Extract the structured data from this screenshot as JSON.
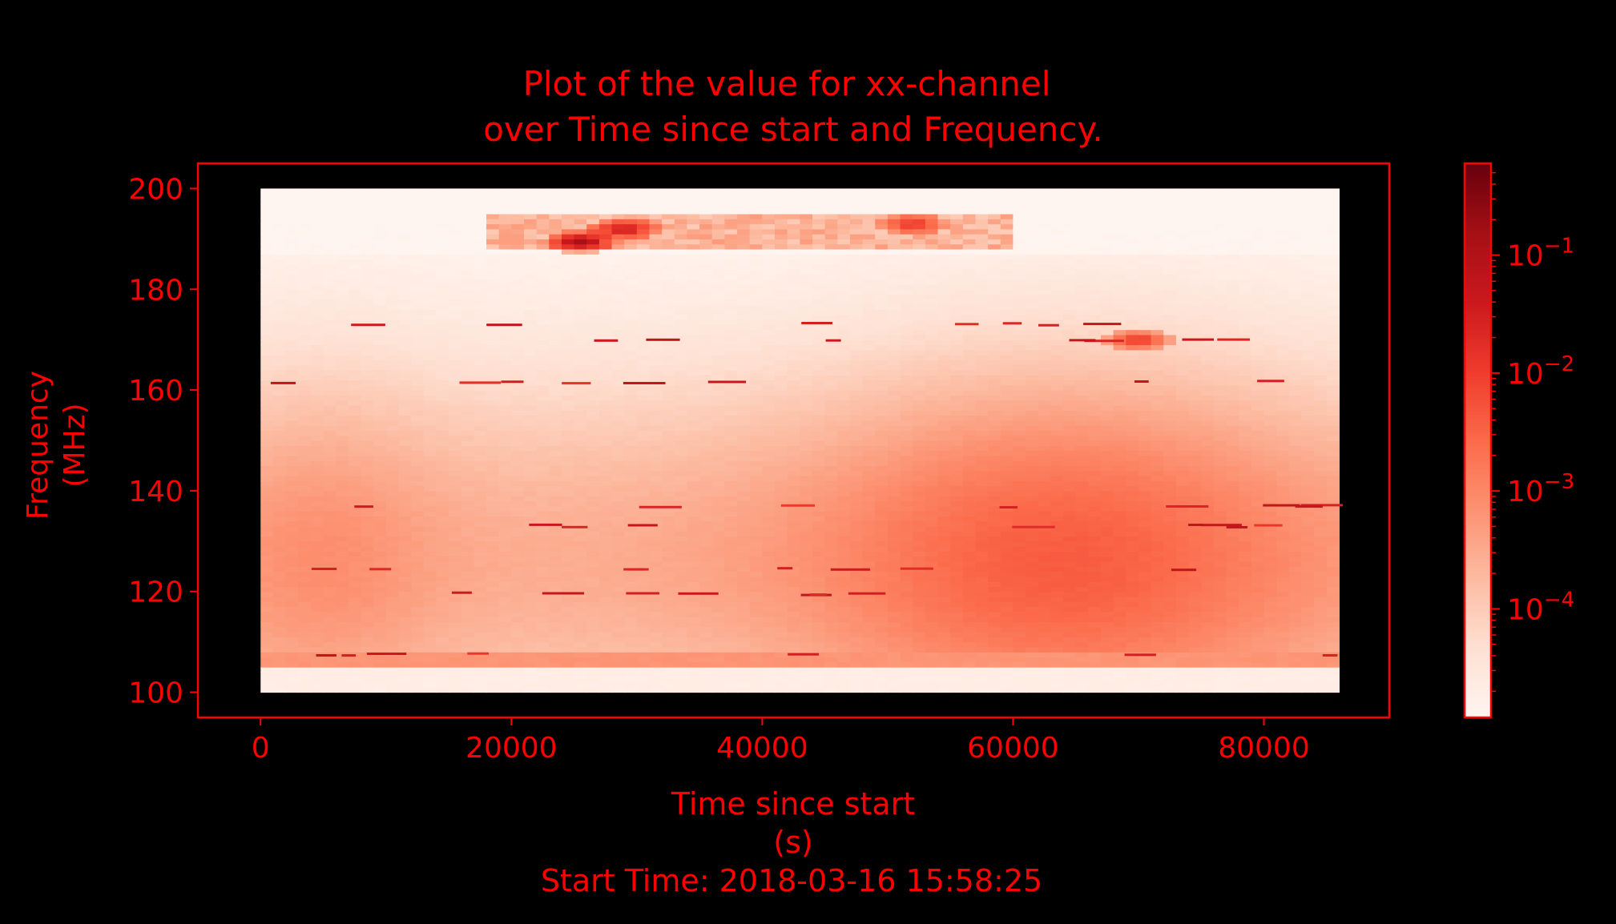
{
  "colors": {
    "background": "#000000",
    "accent": "#ff0000",
    "colormap": [
      "#fff5f0",
      "#fee0d2",
      "#fcbba1",
      "#fc9272",
      "#fb6a4a",
      "#ef3b2c",
      "#cb181d",
      "#a50f15",
      "#67000d"
    ]
  },
  "chart_data": {
    "type": "heatmap",
    "title_line1": "Plot of the value for xx-channel",
    "title_line2": "over Time since start and Frequency.",
    "xlabel_line1": "Time since start",
    "xlabel_line2": "(s)",
    "ylabel_line1": "Frequency",
    "ylabel_line2": "(MHz)",
    "footer": "Start Time: 2018-03-16 15:58:25",
    "xlim": [
      -5000,
      90000
    ],
    "ylim": [
      95,
      205
    ],
    "data_extent": {
      "x": [
        0,
        86000
      ],
      "y": [
        100,
        200
      ]
    },
    "xticks": [
      0,
      20000,
      40000,
      60000,
      80000
    ],
    "xtick_labels": [
      "0",
      "20000",
      "40000",
      "60000",
      "80000"
    ],
    "yticks": [
      100,
      120,
      140,
      160,
      180,
      200
    ],
    "ytick_labels": [
      "100",
      "120",
      "140",
      "160",
      "180",
      "200"
    ],
    "colorbar": {
      "scale": "log",
      "range": [
        1.2e-05,
        0.6
      ],
      "ticks": [
        0.0001,
        0.001,
        0.01,
        0.1
      ],
      "tick_labels": [
        {
          "base": "10",
          "exp": "−4"
        },
        {
          "base": "10",
          "exp": "−3"
        },
        {
          "base": "10",
          "exp": "−2"
        },
        {
          "base": "10",
          "exp": "−1"
        }
      ]
    },
    "grid": false,
    "rfi_hotspots": [
      {
        "t": 25500,
        "f": 189.5,
        "v": 0.12
      },
      {
        "t": 29000,
        "f": 192,
        "v": 0.03
      },
      {
        "t": 52000,
        "f": 193,
        "v": 0.01
      },
      {
        "t": 70000,
        "f": 170,
        "v": 0.01
      }
    ]
  }
}
